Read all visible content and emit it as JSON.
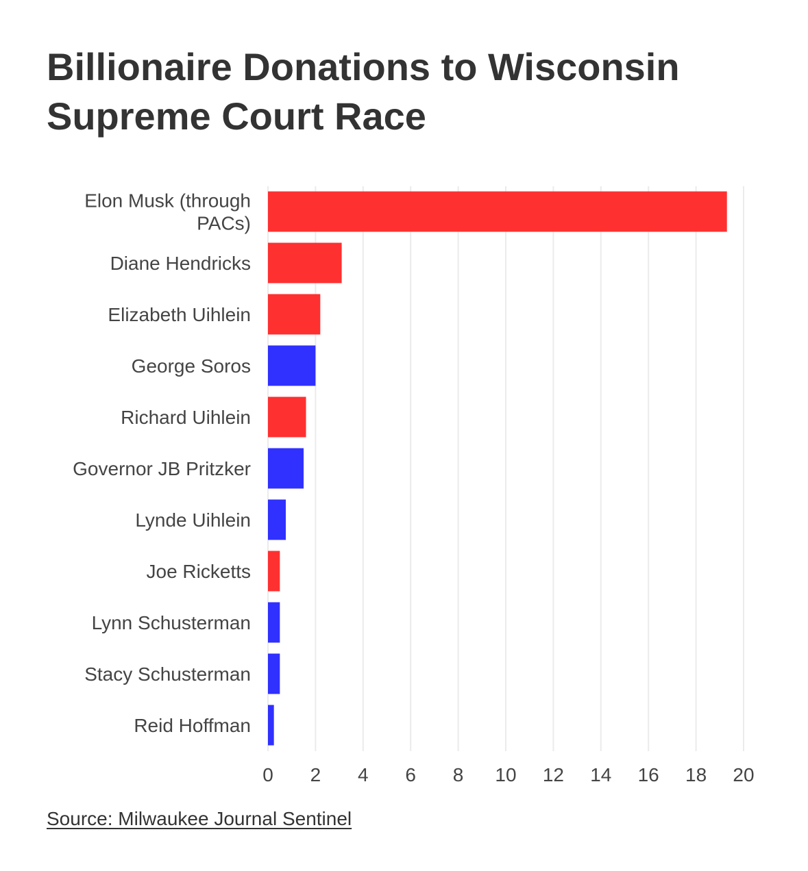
{
  "chart_data": {
    "type": "bar",
    "orientation": "horizontal",
    "title": "Billionaire Donations to Wisconsin Supreme Court Race",
    "xlabel": "",
    "ylabel": "",
    "xlim": [
      0,
      20
    ],
    "x_ticks": [
      0,
      2,
      4,
      6,
      8,
      10,
      12,
      14,
      16,
      18,
      20
    ],
    "grid": "vertical",
    "legend": "none",
    "categories": [
      [
        "Elon Musk (through",
        "PACs)"
      ],
      [
        "Diane Hendricks"
      ],
      [
        "Elizabeth Uihlein"
      ],
      [
        "George Soros"
      ],
      [
        "Richard Uihlein"
      ],
      [
        "Governor JB Pritzker"
      ],
      [
        "Lynde Uihlein"
      ],
      [
        "Joe Ricketts"
      ],
      [
        "Lynn Schusterman"
      ],
      [
        "Stacy Schusterman"
      ],
      [
        "Reid Hoffman"
      ]
    ],
    "values": [
      19.3,
      3.1,
      2.2,
      2.0,
      1.6,
      1.5,
      0.75,
      0.5,
      0.5,
      0.5,
      0.25
    ],
    "bar_colors": [
      "#ff3030",
      "#ff3030",
      "#ff3030",
      "#3030ff",
      "#ff3030",
      "#3030ff",
      "#3030ff",
      "#ff3030",
      "#3030ff",
      "#3030ff",
      "#3030ff"
    ],
    "colors": {
      "red": "#ff3030",
      "blue": "#3030ff",
      "grid": "#ebebeb",
      "text": "#444444"
    }
  },
  "source": {
    "label": "Source: Milwaukee Journal Sentinel"
  }
}
